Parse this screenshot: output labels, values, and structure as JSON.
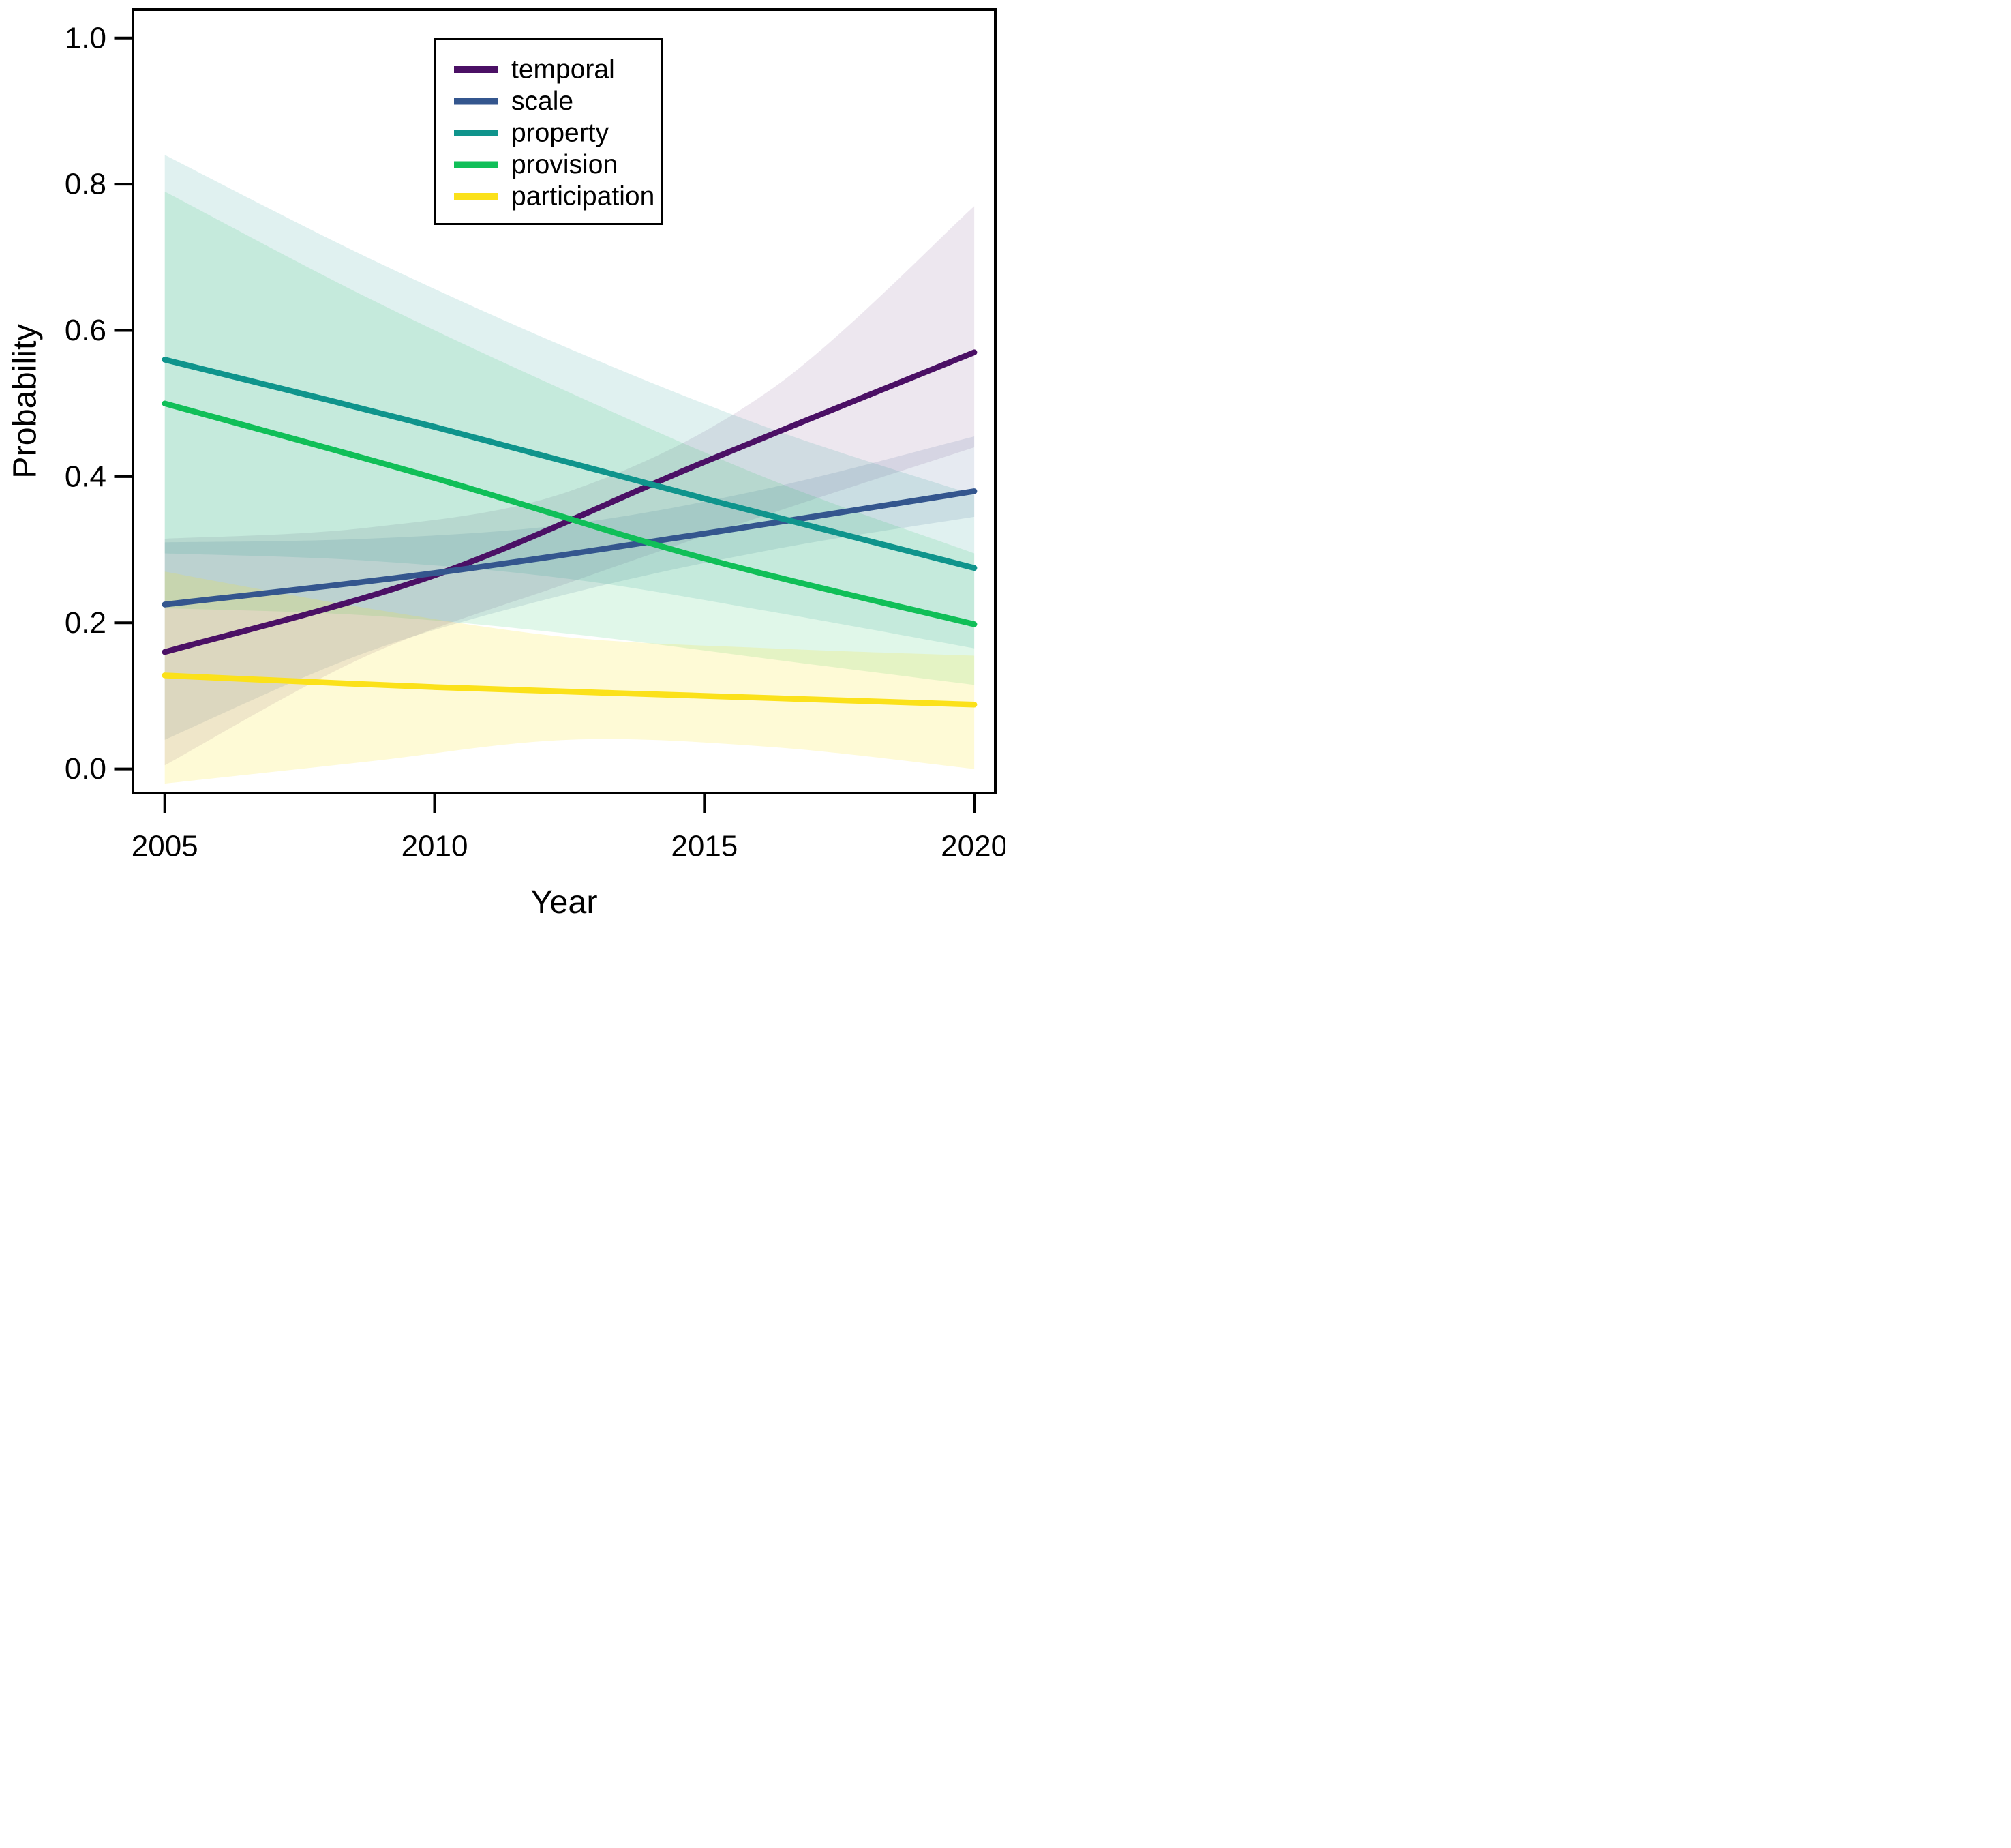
{
  "chart_data": {
    "type": "line",
    "title": "",
    "xlabel": "Year",
    "ylabel": "Probability",
    "grid": false,
    "legend_position": "top-center",
    "xlim": [
      2004.41,
      2020.39
    ],
    "ylim": [
      -0.033,
      1.039
    ],
    "x_ticks": [
      {
        "label": "2005",
        "value": 2005
      },
      {
        "label": "2010",
        "value": 2010
      },
      {
        "label": "2015",
        "value": 2015
      },
      {
        "label": "2020",
        "value": 2020
      }
    ],
    "y_ticks": [
      {
        "label": "1.0",
        "value": 1.0
      },
      {
        "label": "0.8",
        "value": 0.8
      },
      {
        "label": "0.6",
        "value": 0.6
      },
      {
        "label": "0.4",
        "value": 0.4
      },
      {
        "label": "0.2",
        "value": 0.2
      },
      {
        "label": "0.0",
        "value": 0.0
      }
    ],
    "x": [
      2005,
      2010,
      2015,
      2020
    ],
    "band_x": [
      2005,
      2008.75,
      2012.5,
      2016.25,
      2020
    ],
    "series": [
      {
        "name": "temporal",
        "color": "#4B1065",
        "values": [
          0.16,
          0.265,
          0.42,
          0.57
        ],
        "band_alpha": 0.1,
        "band_upper": [
          0.315,
          0.33,
          0.38,
          0.52,
          0.77
        ],
        "band_lower": [
          0.005,
          0.155,
          0.255,
          0.35,
          0.44
        ]
      },
      {
        "name": "scale",
        "color": "#34568E",
        "values": [
          0.225,
          0.268,
          0.322,
          0.38
        ],
        "band_alpha": 0.12,
        "band_upper": [
          0.31,
          0.315,
          0.335,
          0.385,
          0.455
        ],
        "band_lower": [
          0.04,
          0.16,
          0.24,
          0.3,
          0.345
        ]
      },
      {
        "name": "property",
        "color": "#0F948C",
        "values": [
          0.56,
          0.468,
          0.37,
          0.275
        ],
        "band_alpha": 0.13,
        "band_upper": [
          0.84,
          0.7,
          0.575,
          0.465,
          0.375
        ],
        "band_lower": [
          0.295,
          0.285,
          0.26,
          0.215,
          0.165
        ]
      },
      {
        "name": "provision",
        "color": "#10BF58",
        "values": [
          0.5,
          0.398,
          0.288,
          0.198
        ],
        "band_alpha": 0.13,
        "band_upper": [
          0.79,
          0.645,
          0.515,
          0.395,
          0.295
        ],
        "band_lower": [
          0.22,
          0.21,
          0.185,
          0.15,
          0.115
        ]
      },
      {
        "name": "participation",
        "color": "#FBE11A",
        "values": [
          0.128,
          0.112,
          0.1,
          0.088
        ],
        "band_alpha": 0.18,
        "band_upper": [
          0.27,
          0.22,
          0.18,
          0.165,
          0.155
        ],
        "band_lower": [
          -0.02,
          0.01,
          0.04,
          0.03,
          0.0
        ]
      }
    ]
  }
}
